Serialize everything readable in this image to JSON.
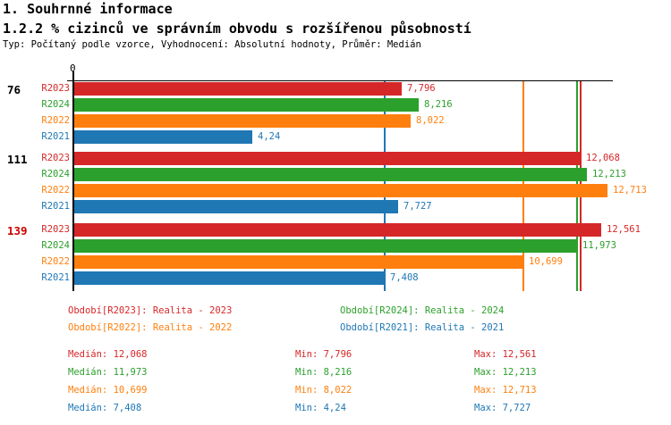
{
  "header": {
    "title": "1. Souhrnné informace",
    "subtitle": "1.2.2 % cizinců ve správním obvodu s rozšířenou působností",
    "meta": "Typ: Počítaný podle vzorce, Vyhodnocení: Absolutní hodnoty, Průměr: Medián"
  },
  "chart_data": {
    "type": "bar",
    "orientation": "horizontal",
    "x_axis": {
      "origin_label": "0",
      "min": 0
    },
    "series": [
      {
        "id": "R2023",
        "name": "Realita - 2023",
        "color": "#d62728",
        "median": 12.068
      },
      {
        "id": "R2024",
        "name": "Realita - 2024",
        "color": "#2ca02c",
        "median": 11.973
      },
      {
        "id": "R2022",
        "name": "Realita - 2022",
        "color": "#ff7f0e",
        "median": 10.699
      },
      {
        "id": "R2021",
        "name": "Realita - 2021",
        "color": "#1f77b4",
        "median": 7.408
      }
    ],
    "groups": [
      {
        "label": "76",
        "label_color": "#000000",
        "values": [
          7.796,
          8.216,
          8.022,
          4.24
        ],
        "displays": [
          "7,796",
          "8,216",
          "8,022",
          "4,24"
        ]
      },
      {
        "label": "111",
        "label_color": "#000000",
        "values": [
          12.068,
          12.213,
          12.713,
          7.727
        ],
        "displays": [
          "12,068",
          "12,213",
          "12,713",
          "7,727"
        ]
      },
      {
        "label": "139",
        "label_color": "#cc0000",
        "values": [
          12.561,
          11.973,
          10.699,
          7.408
        ],
        "displays": [
          "12,561",
          "11,973",
          "10,699",
          "7,408"
        ]
      }
    ],
    "median_lines": [
      {
        "series": "R2021",
        "value": 7.408,
        "color": "#1f77b4"
      },
      {
        "series": "R2022",
        "value": 10.699,
        "color": "#ff7f0e"
      },
      {
        "series": "R2024",
        "value": 11.973,
        "color": "#2ca02c"
      },
      {
        "series": "R2023",
        "value": 12.068,
        "color": "#d62728"
      }
    ]
  },
  "legend": {
    "items": [
      {
        "text": "Období[R2023]: Realita - 2023",
        "color": "#d62728"
      },
      {
        "text": "Období[R2024]: Realita - 2024",
        "color": "#2ca02c"
      },
      {
        "text": "Období[R2022]: Realita - 2022",
        "color": "#ff7f0e"
      },
      {
        "text": "Období[R2021]: Realita - 2021",
        "color": "#1f77b4"
      }
    ]
  },
  "stats": {
    "rows": [
      {
        "color": "#d62728",
        "median": "Medián: 12,068",
        "min": "Min: 7,796",
        "max": "Max: 12,561"
      },
      {
        "color": "#2ca02c",
        "median": "Medián: 11,973",
        "min": "Min: 8,216",
        "max": "Max: 12,213"
      },
      {
        "color": "#ff7f0e",
        "median": "Medián: 10,699",
        "min": "Min: 8,022",
        "max": "Max: 12,713"
      },
      {
        "color": "#1f77b4",
        "median": "Medián: 7,408",
        "min": "Min: 4,24",
        "max": "Max: 7,727"
      }
    ]
  }
}
